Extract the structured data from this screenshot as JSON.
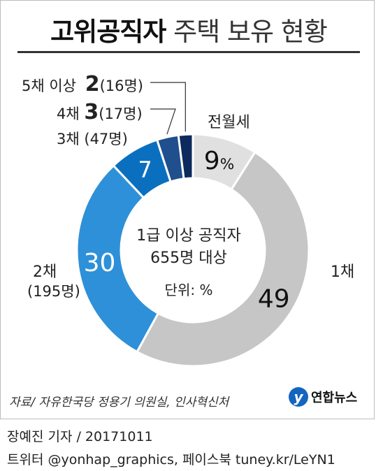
{
  "title": {
    "bold": "고위공직자",
    "light": "주택 보유 현황"
  },
  "chart_data": {
    "type": "pie",
    "style": "donut",
    "center_lines": [
      "1급 이상 공직자",
      "655명 대상"
    ],
    "unit_label": "단위: %",
    "slices": [
      {
        "name": "전월세",
        "value": 9,
        "color": "#e0e0e0"
      },
      {
        "name": "1채",
        "value": 49,
        "color": "#c6c6c6"
      },
      {
        "name": "2채",
        "sub": "(195명)",
        "value": 30,
        "color": "#2e90d8"
      },
      {
        "name": "3채",
        "sub": "(47명)",
        "value": 7,
        "color": "#0b6fbf"
      },
      {
        "name": "4채",
        "sub": "(17명)",
        "value": 3,
        "color": "#1f4f8c"
      },
      {
        "name": "5채 이상",
        "sub": "(16명)",
        "value": 2,
        "color": "#0d2a5c"
      }
    ],
    "value_labels": {
      "pct_suffix": "%"
    }
  },
  "source": "자료/ 자유한국당 정용기 의원실, 인사혁신처",
  "logo": {
    "mark": "y",
    "text": "연합뉴스"
  },
  "reporter": "장예진 기자 / 20171011",
  "social": "트위터 @yonhap_graphics, 페이스북 tuney.kr/LeYN1"
}
